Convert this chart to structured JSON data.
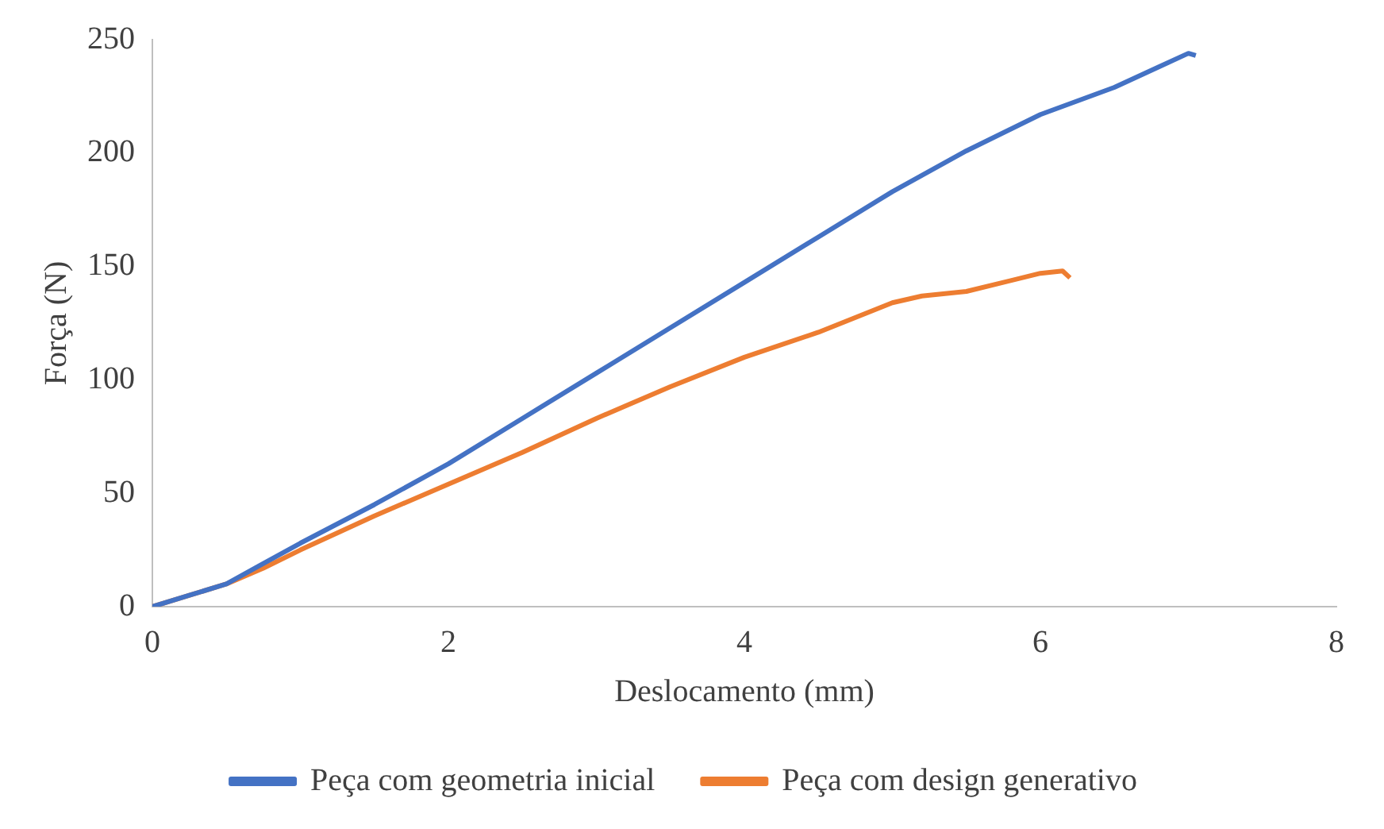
{
  "chart_data": {
    "type": "line",
    "xlabel": "Deslocamento (mm)",
    "ylabel": "Força (N)",
    "xlim": [
      0,
      8
    ],
    "xticks": [
      0,
      2,
      4,
      6,
      8
    ],
    "ylim": [
      0,
      250
    ],
    "yticks": [
      0,
      50,
      100,
      150,
      200,
      250
    ],
    "grid": false,
    "legend": "bottom",
    "marker": "none",
    "line_style": "solid",
    "series": [
      {
        "name": "Peça com geometria inicial",
        "color": "#4472c4",
        "x": [
          0,
          0.25,
          0.5,
          0.75,
          1,
          1.5,
          2,
          2.5,
          3,
          3.5,
          4,
          4.5,
          5,
          5.5,
          6,
          6.5,
          6.8,
          7,
          7.05
        ],
        "values": [
          0,
          5,
          10,
          19,
          28,
          45,
          63,
          83,
          103,
          123,
          143,
          163,
          183,
          201,
          217,
          229,
          238,
          244,
          243
        ]
      },
      {
        "name": "Peça com design generativo",
        "color": "#ed7d31",
        "x": [
          0,
          0.5,
          0.75,
          1,
          1.5,
          2,
          2.5,
          3,
          3.5,
          4,
          4.5,
          5,
          5.2,
          5.5,
          6,
          6.15,
          6.2
        ],
        "values": [
          0,
          10,
          17,
          25,
          40,
          54,
          68,
          83,
          97,
          110,
          121,
          134,
          137,
          139,
          147,
          148,
          145
        ]
      }
    ]
  }
}
